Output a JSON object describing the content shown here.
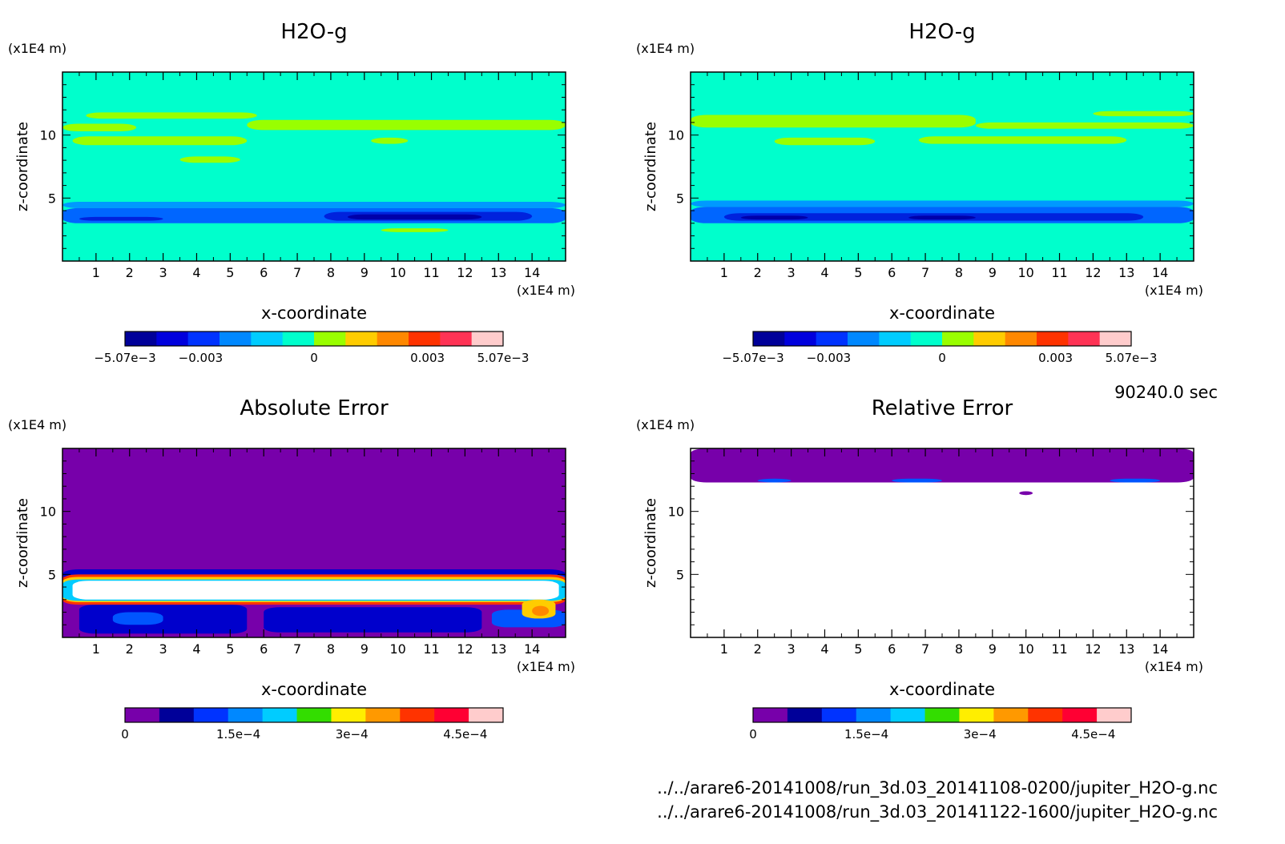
{
  "chart_data": [
    {
      "type": "heatmap",
      "title": "H2O-g",
      "xlabel": "x-coordinate",
      "ylabel": "z-coordinate",
      "x_unit": "(x1E4 m)",
      "y_unit": "(x1E4 m)",
      "xlim": [
        0,
        15
      ],
      "ylim": [
        0,
        15
      ],
      "x_ticks": [
        "1",
        "2",
        "3",
        "4",
        "5",
        "6",
        "7",
        "8",
        "9",
        "10",
        "11",
        "12",
        "13",
        "14"
      ],
      "y_ticks": [
        "5",
        "10"
      ],
      "background": "#00ffcc",
      "bands": [
        {
          "z": [
            4.2,
            4.7
          ],
          "x": [
            0,
            15
          ],
          "color": "#0099ff"
        },
        {
          "z": [
            3.0,
            4.2
          ],
          "x": [
            0,
            15
          ],
          "color": "#0066ff"
        },
        {
          "z": [
            3.2,
            3.9
          ],
          "x": [
            7.8,
            14
          ],
          "color": "#0022dd"
        },
        {
          "z": [
            3.3,
            3.7
          ],
          "x": [
            8.5,
            12.5
          ],
          "color": "#0000aa"
        },
        {
          "z": [
            3.2,
            3.5
          ],
          "x": [
            0.5,
            3
          ],
          "color": "#0022dd"
        },
        {
          "z": [
            10.3,
            10.9
          ],
          "x": [
            0,
            2.2
          ],
          "color": "#99ff00"
        },
        {
          "z": [
            9.2,
            9.9
          ],
          "x": [
            0.3,
            5.5
          ],
          "color": "#99ff00"
        },
        {
          "z": [
            11.3,
            11.8
          ],
          "x": [
            0.7,
            5.8
          ],
          "color": "#99ff00"
        },
        {
          "z": [
            10.4,
            11.2
          ],
          "x": [
            5.5,
            15
          ],
          "color": "#99ff00"
        },
        {
          "z": [
            7.8,
            8.3
          ],
          "x": [
            3.5,
            5.3
          ],
          "color": "#99ff00"
        },
        {
          "z": [
            9.3,
            9.8
          ],
          "x": [
            9.2,
            10.3
          ],
          "color": "#99ff00"
        },
        {
          "z": [
            2.3,
            2.6
          ],
          "x": [
            9.5,
            11.5
          ],
          "color": "#99ff00"
        }
      ],
      "colorbar": {
        "colors": [
          "#000099",
          "#0000dd",
          "#0033ff",
          "#0088ff",
          "#00ccff",
          "#00ffcc",
          "#99ff00",
          "#ffcc00",
          "#ff8800",
          "#ff3300",
          "#ff3355",
          "#ffcccc"
        ],
        "labels": [
          {
            "text": "−5.07e−3",
            "pos": 0
          },
          {
            "text": "−0.003",
            "pos": 0.2
          },
          {
            "text": "0",
            "pos": 0.5
          },
          {
            "text": "0.003",
            "pos": 0.8
          },
          {
            "text": "5.07e−3",
            "pos": 1
          }
        ]
      }
    },
    {
      "type": "heatmap",
      "title": "H2O-g",
      "xlabel": "x-coordinate",
      "ylabel": "z-coordinate",
      "x_unit": "(x1E4 m)",
      "y_unit": "(x1E4 m)",
      "xlim": [
        0,
        15
      ],
      "ylim": [
        0,
        15
      ],
      "x_ticks": [
        "1",
        "2",
        "3",
        "4",
        "5",
        "6",
        "7",
        "8",
        "9",
        "10",
        "11",
        "12",
        "13",
        "14"
      ],
      "y_ticks": [
        "5",
        "10"
      ],
      "background": "#00ffcc",
      "bands": [
        {
          "z": [
            4.3,
            4.8
          ],
          "x": [
            0,
            15
          ],
          "color": "#0099ff"
        },
        {
          "z": [
            3.0,
            4.3
          ],
          "x": [
            0,
            15
          ],
          "color": "#0066ff"
        },
        {
          "z": [
            3.2,
            3.8
          ],
          "x": [
            1,
            13.5
          ],
          "color": "#0022dd"
        },
        {
          "z": [
            3.3,
            3.6
          ],
          "x": [
            1.5,
            3.5
          ],
          "color": "#0000aa"
        },
        {
          "z": [
            3.3,
            3.6
          ],
          "x": [
            6.5,
            8.5
          ],
          "color": "#0000aa"
        },
        {
          "z": [
            10.6,
            11.6
          ],
          "x": [
            0,
            8.5
          ],
          "color": "#99ff00"
        },
        {
          "z": [
            10.5,
            11.0
          ],
          "x": [
            8.5,
            15
          ],
          "color": "#99ff00"
        },
        {
          "z": [
            9.2,
            9.8
          ],
          "x": [
            2.5,
            5.5
          ],
          "color": "#99ff00"
        },
        {
          "z": [
            9.3,
            9.9
          ],
          "x": [
            6.8,
            13.0
          ],
          "color": "#99ff00"
        },
        {
          "z": [
            11.5,
            11.9
          ],
          "x": [
            12.0,
            15
          ],
          "color": "#99ff00"
        }
      ],
      "colorbar": {
        "colors": [
          "#000099",
          "#0000dd",
          "#0033ff",
          "#0088ff",
          "#00ccff",
          "#00ffcc",
          "#99ff00",
          "#ffcc00",
          "#ff8800",
          "#ff3300",
          "#ff3355",
          "#ffcccc"
        ],
        "labels": [
          {
            "text": "−5.07e−3",
            "pos": 0
          },
          {
            "text": "−0.003",
            "pos": 0.2
          },
          {
            "text": "0",
            "pos": 0.5
          },
          {
            "text": "0.003",
            "pos": 0.8
          },
          {
            "text": "5.07e−3",
            "pos": 1
          }
        ]
      }
    },
    {
      "type": "heatmap",
      "title": "Absolute Error",
      "xlabel": "x-coordinate",
      "ylabel": "z-coordinate",
      "x_unit": "(x1E4 m)",
      "y_unit": "(x1E4 m)",
      "xlim": [
        0,
        15
      ],
      "ylim": [
        0,
        15
      ],
      "x_ticks": [
        "1",
        "2",
        "3",
        "4",
        "5",
        "6",
        "7",
        "8",
        "9",
        "10",
        "11",
        "12",
        "13",
        "14"
      ],
      "y_ticks": [
        "5",
        "10"
      ],
      "background": "#7700aa",
      "bands": [
        {
          "z": [
            0.3,
            2.6
          ],
          "x": [
            0.5,
            5.5
          ],
          "color": "#0000cc"
        },
        {
          "z": [
            0.4,
            2.4
          ],
          "x": [
            6.0,
            12.5
          ],
          "color": "#0000cc"
        },
        {
          "z": [
            1.0,
            2.0
          ],
          "x": [
            1.5,
            3.0
          ],
          "color": "#0055ff"
        },
        {
          "z": [
            0.8,
            2.2
          ],
          "x": [
            12.8,
            15
          ],
          "color": "#0055ff"
        },
        {
          "z": [
            4.6,
            5.4
          ],
          "x": [
            0,
            15
          ],
          "color": "#0000cc"
        },
        {
          "z": [
            4.5,
            5.0
          ],
          "x": [
            10.5,
            15
          ],
          "color": "#0055ff"
        },
        {
          "z": [
            2.6,
            5.0
          ],
          "x": [
            0,
            15
          ],
          "color": "#ff3300"
        },
        {
          "z": [
            2.8,
            4.8
          ],
          "x": [
            0,
            15
          ],
          "color": "#ffcc00"
        },
        {
          "z": [
            2.9,
            4.6
          ],
          "x": [
            0,
            15
          ],
          "color": "#00ccff"
        },
        {
          "z": [
            3.0,
            4.5
          ],
          "x": [
            0.3,
            14.8
          ],
          "color": "#ffffff"
        },
        {
          "z": [
            1.5,
            3.0
          ],
          "x": [
            13.7,
            14.7
          ],
          "color": "#ffcc00"
        },
        {
          "z": [
            1.7,
            2.5
          ],
          "x": [
            14.0,
            14.5
          ],
          "color": "#ff8800"
        }
      ],
      "colorbar": {
        "colors": [
          "#7700aa",
          "#000099",
          "#0033ff",
          "#0088ff",
          "#00ccff",
          "#33dd00",
          "#ffee00",
          "#ff9900",
          "#ff3300",
          "#ff0033",
          "#ffcccc"
        ],
        "labels": [
          {
            "text": "0",
            "pos": 0
          },
          {
            "text": "1.5e−4",
            "pos": 0.3
          },
          {
            "text": "3e−4",
            "pos": 0.6
          },
          {
            "text": "4.5e−4",
            "pos": 0.9
          }
        ]
      }
    },
    {
      "type": "heatmap",
      "title": "Relative Error",
      "xlabel": "x-coordinate",
      "ylabel": "z-coordinate",
      "x_unit": "(x1E4 m)",
      "y_unit": "(x1E4 m)",
      "xlim": [
        0,
        15
      ],
      "ylim": [
        0,
        15
      ],
      "x_ticks": [
        "1",
        "2",
        "3",
        "4",
        "5",
        "6",
        "7",
        "8",
        "9",
        "10",
        "11",
        "12",
        "13",
        "14"
      ],
      "y_ticks": [
        "5",
        "10"
      ],
      "background": "#ffffff",
      "bands": [
        {
          "z": [
            12.3,
            15
          ],
          "x": [
            0,
            15
          ],
          "color": "#7700aa"
        },
        {
          "z": [
            12.3,
            12.6
          ],
          "x": [
            2.0,
            3.0
          ],
          "color": "#0055ff"
        },
        {
          "z": [
            12.3,
            12.6
          ],
          "x": [
            6.0,
            7.5
          ],
          "color": "#0055ff"
        },
        {
          "z": [
            12.3,
            12.6
          ],
          "x": [
            12.5,
            14.0
          ],
          "color": "#0055ff"
        },
        {
          "z": [
            11.3,
            11.6
          ],
          "x": [
            9.8,
            10.2
          ],
          "color": "#7700aa"
        }
      ],
      "colorbar": {
        "colors": [
          "#7700aa",
          "#000099",
          "#0033ff",
          "#0088ff",
          "#00ccff",
          "#33dd00",
          "#ffee00",
          "#ff9900",
          "#ff3300",
          "#ff0033",
          "#ffcccc"
        ],
        "labels": [
          {
            "text": "0",
            "pos": 0
          },
          {
            "text": "1.5e−4",
            "pos": 0.3
          },
          {
            "text": "3e−4",
            "pos": 0.6
          },
          {
            "text": "4.5e−4",
            "pos": 0.9
          }
        ]
      }
    }
  ],
  "annotations": {
    "time": "90240.0 sec",
    "file1": "../../arare6-20141008/run_3d.03_20141108-0200/jupiter_H2O-g.nc",
    "file2": "../../arare6-20141008/run_3d.03_20141122-1600/jupiter_H2O-g.nc"
  }
}
